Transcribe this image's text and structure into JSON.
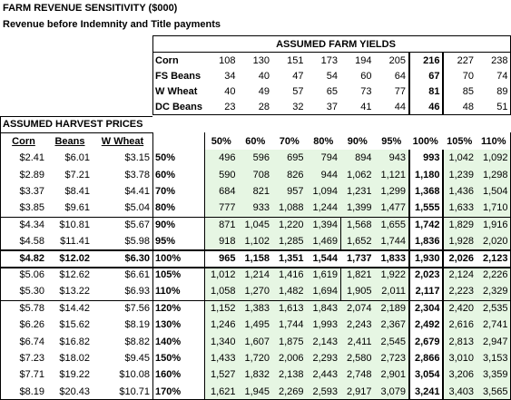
{
  "header": {
    "title": "FARM REVENUE SENSITIVITY ($000)",
    "subtitle": "Revenue before Indemnity and Title payments"
  },
  "yields": {
    "title": "ASSUMED FARM YIELDS",
    "rows": [
      {
        "label": "Corn",
        "values": [
          "108",
          "130",
          "151",
          "173",
          "194",
          "205",
          "216",
          "227",
          "238"
        ]
      },
      {
        "label": "FS Beans",
        "values": [
          "34",
          "40",
          "47",
          "54",
          "60",
          "64",
          "67",
          "70",
          "74"
        ]
      },
      {
        "label": "W Wheat",
        "values": [
          "40",
          "49",
          "57",
          "65",
          "73",
          "77",
          "81",
          "85",
          "89"
        ]
      },
      {
        "label": "DC Beans",
        "values": [
          "23",
          "28",
          "32",
          "37",
          "41",
          "44",
          "46",
          "48",
          "51"
        ]
      }
    ]
  },
  "prices": {
    "title": "ASSUMED HARVEST PRICES",
    "headers": [
      "Corn",
      "Beans",
      "W Wheat"
    ],
    "columns": [
      "50%",
      "60%",
      "70%",
      "80%",
      "90%",
      "95%",
      "100%",
      "105%",
      "110%"
    ],
    "rows": [
      {
        "prices": [
          "$2.41",
          "$6.01",
          "$3.15"
        ],
        "pct": "50%",
        "values": [
          "496",
          "596",
          "695",
          "794",
          "894",
          "943",
          "993",
          "1,042",
          "1,092"
        ]
      },
      {
        "prices": [
          "$2.89",
          "$7.21",
          "$3.78"
        ],
        "pct": "60%",
        "values": [
          "590",
          "708",
          "826",
          "944",
          "1,062",
          "1,121",
          "1,180",
          "1,239",
          "1,298"
        ]
      },
      {
        "prices": [
          "$3.37",
          "$8.41",
          "$4.41"
        ],
        "pct": "70%",
        "values": [
          "684",
          "821",
          "957",
          "1,094",
          "1,231",
          "1,299",
          "1,368",
          "1,436",
          "1,504"
        ]
      },
      {
        "prices": [
          "$3.85",
          "$9.61",
          "$5.04"
        ],
        "pct": "80%",
        "values": [
          "777",
          "933",
          "1,088",
          "1,244",
          "1,399",
          "1,477",
          "1,555",
          "1,633",
          "1,710"
        ]
      },
      {
        "prices": [
          "$4.34",
          "$10.81",
          "$5.67"
        ],
        "pct": "90%",
        "values": [
          "871",
          "1,045",
          "1,220",
          "1,394",
          "1,568",
          "1,655",
          "1,742",
          "1,829",
          "1,916"
        ]
      },
      {
        "prices": [
          "$4.58",
          "$11.41",
          "$5.98"
        ],
        "pct": "95%",
        "values": [
          "918",
          "1,102",
          "1,285",
          "1,469",
          "1,652",
          "1,744",
          "1,836",
          "1,928",
          "2,020"
        ]
      },
      {
        "prices": [
          "$4.82",
          "$12.02",
          "$6.30"
        ],
        "pct": "100%",
        "values": [
          "965",
          "1,158",
          "1,351",
          "1,544",
          "1,737",
          "1,833",
          "1,930",
          "2,026",
          "2,123"
        ]
      },
      {
        "prices": [
          "$5.06",
          "$12.62",
          "$6.61"
        ],
        "pct": "105%",
        "values": [
          "1,012",
          "1,214",
          "1,416",
          "1,619",
          "1,821",
          "1,922",
          "2,023",
          "2,124",
          "2,226"
        ]
      },
      {
        "prices": [
          "$5.30",
          "$13.22",
          "$6.93"
        ],
        "pct": "110%",
        "values": [
          "1,058",
          "1,270",
          "1,482",
          "1,694",
          "1,905",
          "2,011",
          "2,117",
          "2,223",
          "2,329"
        ]
      },
      {
        "prices": [
          "$5.78",
          "$14.42",
          "$7.56"
        ],
        "pct": "120%",
        "values": [
          "1,152",
          "1,383",
          "1,613",
          "1,843",
          "2,074",
          "2,189",
          "2,304",
          "2,420",
          "2,535"
        ]
      },
      {
        "prices": [
          "$6.26",
          "$15.62",
          "$8.19"
        ],
        "pct": "130%",
        "values": [
          "1,246",
          "1,495",
          "1,744",
          "1,993",
          "2,243",
          "2,367",
          "2,492",
          "2,616",
          "2,741"
        ]
      },
      {
        "prices": [
          "$6.74",
          "$16.82",
          "$8.82"
        ],
        "pct": "140%",
        "values": [
          "1,340",
          "1,607",
          "1,875",
          "2,143",
          "2,411",
          "2,545",
          "2,679",
          "2,813",
          "2,947"
        ]
      },
      {
        "prices": [
          "$7.23",
          "$18.02",
          "$9.45"
        ],
        "pct": "150%",
        "values": [
          "1,433",
          "1,720",
          "2,006",
          "2,293",
          "2,580",
          "2,723",
          "2,866",
          "3,010",
          "3,153"
        ]
      },
      {
        "prices": [
          "$7.71",
          "$19.22",
          "$10.08"
        ],
        "pct": "160%",
        "values": [
          "1,527",
          "1,832",
          "2,138",
          "2,443",
          "2,748",
          "2,901",
          "3,054",
          "3,206",
          "3,359"
        ]
      },
      {
        "prices": [
          "$8.19",
          "$20.43",
          "$10.71"
        ],
        "pct": "170%",
        "values": [
          "1,621",
          "1,945",
          "2,269",
          "2,593",
          "2,917",
          "3,079",
          "3,241",
          "3,403",
          "3,565"
        ]
      }
    ]
  }
}
